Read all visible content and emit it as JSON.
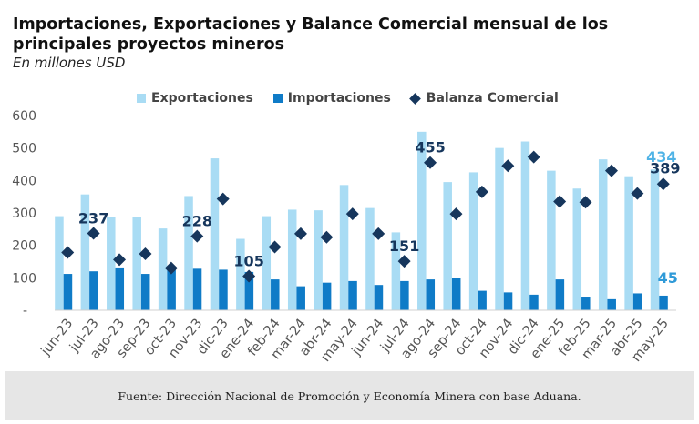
{
  "chart_data": {
    "type": "bar",
    "title": "Importaciones, Exportaciones y Balance Comercial mensual de los principales proyectos mineros",
    "subtitle": "En millones  USD",
    "categories": [
      "jun-23",
      "jul-23",
      "ago-23",
      "sep-23",
      "oct-23",
      "nov-23",
      "dic-23",
      "ene-24",
      "feb-24",
      "mar-24",
      "abr-24",
      "may-24",
      "jun-24",
      "jul-24",
      "ago-24",
      "sep-24",
      "oct-24",
      "nov-24",
      "dic-24",
      "ene-25",
      "feb-25",
      "mar-25",
      "abr-25",
      "may-25"
    ],
    "series": [
      {
        "name": "Exportaciones",
        "kind": "bar",
        "color": "#a9dcf4",
        "values": [
          290,
          357,
          288,
          286,
          252,
          352,
          468,
          220,
          290,
          310,
          308,
          386,
          315,
          240,
          550,
          395,
          425,
          500,
          520,
          430,
          375,
          465,
          413,
          434
        ]
      },
      {
        "name": "Importaciones",
        "kind": "bar",
        "color": "#0f7bc7",
        "values": [
          112,
          120,
          132,
          112,
          125,
          128,
          125,
          118,
          95,
          74,
          85,
          90,
          78,
          90,
          95,
          100,
          60,
          55,
          48,
          95,
          42,
          34,
          52,
          45
        ]
      },
      {
        "name": "Balanza Comercial",
        "kind": "marker",
        "color": "#16365c",
        "values": [
          178,
          237,
          156,
          174,
          130,
          228,
          343,
          105,
          195,
          236,
          225,
          297,
          236,
          151,
          455,
          297,
          365,
          445,
          472,
          335,
          333,
          430,
          360,
          389
        ]
      }
    ],
    "labels": [
      {
        "series": 2,
        "index": 1,
        "text": "237"
      },
      {
        "series": 2,
        "index": 5,
        "text": "228"
      },
      {
        "series": 2,
        "index": 7,
        "text": "105"
      },
      {
        "series": 2,
        "index": 13,
        "text": "151"
      },
      {
        "series": 2,
        "index": 14,
        "text": "455"
      },
      {
        "series": 0,
        "index": 23,
        "text": "434"
      },
      {
        "series": 2,
        "index": 23,
        "text": "389"
      },
      {
        "series": 1,
        "index": 23,
        "text": "45"
      }
    ],
    "ylim": [
      0,
      600
    ],
    "yticks": [
      "-",
      "100",
      "200",
      "300",
      "400",
      "500",
      "600"
    ],
    "legend_position": "top"
  },
  "legend": {
    "exp": "Exportaciones",
    "imp": "Importaciones",
    "bal": "Balanza Comercial"
  },
  "footer": "Fuente: Dirección Nacional de Promoción y Economía Minera con base Aduana.",
  "colors": {
    "exp": "#a9dcf4",
    "imp": "#0f7bc7",
    "bal": "#16365c",
    "lblExp": "#4fb3e6",
    "lblImp": "#2f9ad8"
  }
}
